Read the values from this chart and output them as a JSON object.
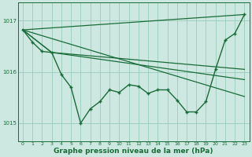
{
  "background_color": "#cce8e0",
  "grid_color": "#99ccbb",
  "line_color": "#1a6b3a",
  "xlabel": "Graphe pression niveau de la mer (hPa)",
  "xlabel_fontsize": 6.5,
  "ylim": [
    1014.65,
    1017.35
  ],
  "xlim": [
    -0.5,
    23.5
  ],
  "yticks": [
    1015,
    1016,
    1017
  ],
  "xticks": [
    0,
    1,
    2,
    3,
    4,
    5,
    6,
    7,
    8,
    9,
    10,
    11,
    12,
    13,
    14,
    15,
    16,
    17,
    18,
    19,
    20,
    21,
    22,
    23
  ],
  "line1_x": [
    0,
    23
  ],
  "line1_y": [
    1016.82,
    1017.12
  ],
  "line2_x": [
    0,
    23
  ],
  "line2_y": [
    1016.82,
    1015.52
  ],
  "line3_x": [
    0,
    3,
    23
  ],
  "line3_y": [
    1016.82,
    1016.38,
    1016.05
  ],
  "line4_x": [
    0,
    3,
    23
  ],
  "line4_y": [
    1016.82,
    1016.38,
    1015.85
  ],
  "main_x": [
    0,
    1,
    2,
    3,
    4,
    5,
    6,
    7,
    8,
    9,
    10,
    11,
    12,
    13,
    14,
    15,
    16,
    17,
    18,
    19,
    20,
    21,
    22,
    23
  ],
  "main_y": [
    1016.82,
    1016.58,
    1016.4,
    1016.38,
    1015.95,
    1015.7,
    1015.0,
    1015.28,
    1015.42,
    1015.65,
    1015.6,
    1015.75,
    1015.72,
    1015.58,
    1015.65,
    1015.65,
    1015.45,
    1015.22,
    1015.22,
    1015.42,
    1016.05,
    1016.62,
    1016.75,
    1017.12
  ]
}
